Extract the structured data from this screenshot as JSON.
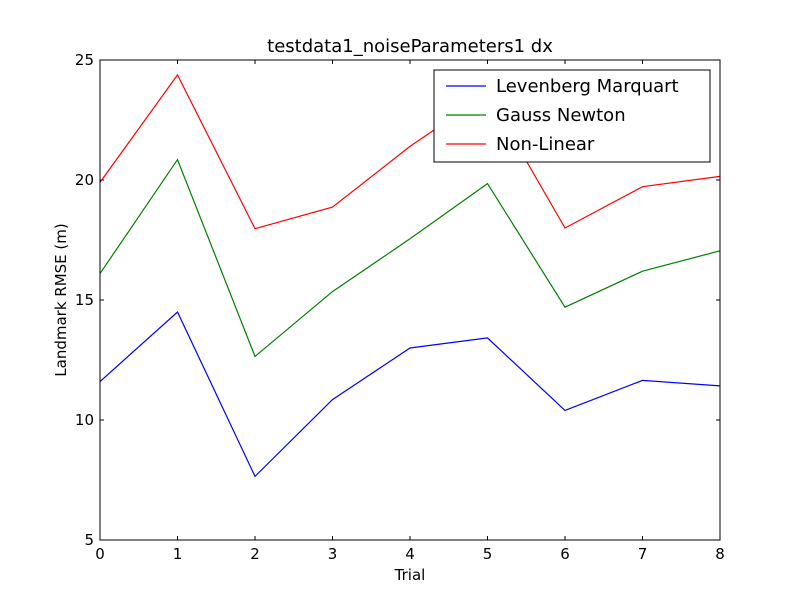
{
  "chart_data": {
    "type": "line",
    "title": "testdata1_noiseParameters1 dx",
    "xlabel": "Trial",
    "ylabel": "Landmark RMSE (m)",
    "xlim": [
      0,
      8
    ],
    "ylim": [
      5,
      25
    ],
    "xticks": [
      0,
      1,
      2,
      3,
      4,
      5,
      6,
      7,
      8
    ],
    "yticks": [
      5,
      10,
      15,
      20,
      25
    ],
    "grid": false,
    "legend_position": "top-right",
    "x": [
      0,
      1,
      2,
      3,
      4,
      5,
      6,
      7,
      8
    ],
    "series": [
      {
        "name": "Levenberg Marquart",
        "color": "#0000ff",
        "values": [
          11.6,
          14.5,
          7.65,
          10.85,
          13.0,
          13.42,
          10.4,
          11.65,
          11.42
        ]
      },
      {
        "name": "Gauss Newton",
        "color": "#008000",
        "values": [
          16.1,
          20.85,
          12.65,
          15.35,
          17.55,
          19.85,
          14.7,
          16.2,
          17.05
        ]
      },
      {
        "name": "Non-Linear",
        "color": "#ff0000",
        "values": [
          19.9,
          24.38,
          17.97,
          18.87,
          21.4,
          23.6,
          18.0,
          19.72,
          20.15
        ]
      }
    ]
  }
}
